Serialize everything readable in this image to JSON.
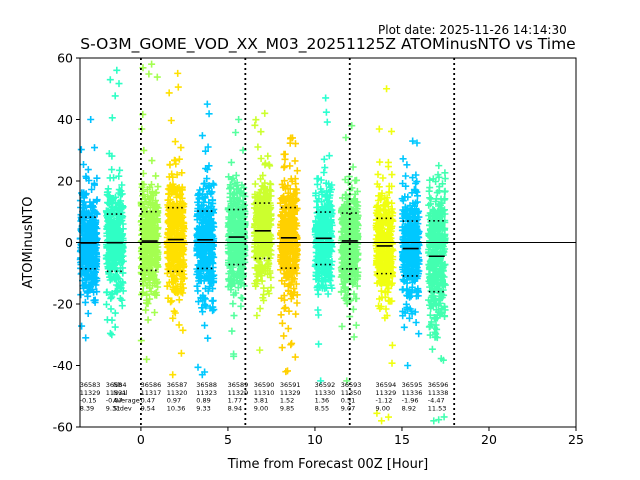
{
  "plot_date": "Plot date: 2025-11-26 14:14:30",
  "chart_data": {
    "type": "scatter",
    "title": "S-O3M_GOME_VOD_XX_M03_20251125Z ATOMinusNTO vs Time",
    "xlabel": "Time from Forecast 00Z [Hour]",
    "ylabel": "ATOMinusNTO",
    "xlim": [
      -3.5,
      25
    ],
    "ylim": [
      -60,
      60
    ],
    "xticks": [
      0,
      5,
      10,
      15,
      20,
      25
    ],
    "yticks": [
      -60,
      -40,
      -20,
      0,
      20,
      40,
      60
    ],
    "vlines": [
      0,
      6,
      12,
      18
    ],
    "hline": 0,
    "stats_labels": [
      "Nb",
      "Nval",
      "Average",
      "Stdev"
    ],
    "groups": [
      {
        "x": -3.0,
        "id": "36583",
        "nval": "11329",
        "mean": -0.15,
        "sd": 8.39,
        "color": "#00c0ff",
        "low": -31,
        "high": 40
      },
      {
        "x": -1.5,
        "id": "36584",
        "nval": "11331",
        "mean": -0.07,
        "sd": 9.31,
        "color": "#2fffc5",
        "low": -30,
        "high": 56
      },
      {
        "x": 0.5,
        "id": "36586",
        "nval": "11317",
        "mean": 0.47,
        "sd": 9.54,
        "color": "#a4ff50",
        "low": -38,
        "high": 58
      },
      {
        "x": 2.0,
        "id": "36587",
        "nval": "11320",
        "mean": 0.97,
        "sd": 10.36,
        "color": "#ffe000",
        "low": -43,
        "high": 55
      },
      {
        "x": 3.7,
        "id": "36588",
        "nval": "11323",
        "mean": 0.89,
        "sd": 9.33,
        "color": "#00c8ff",
        "low": -43,
        "high": 45
      },
      {
        "x": 5.5,
        "id": "36589",
        "nval": "11329",
        "mean": 1.77,
        "sd": 8.94,
        "color": "#55ff9f",
        "low": -37,
        "high": 40
      },
      {
        "x": 7.0,
        "id": "36590",
        "nval": "11310",
        "mean": 3.81,
        "sd": 9.0,
        "color": "#ccff2e",
        "low": -35,
        "high": 42
      },
      {
        "x": 8.5,
        "id": "36591",
        "nval": "11329",
        "mean": 1.52,
        "sd": 9.85,
        "color": "#ffd000",
        "low": -42,
        "high": 34
      },
      {
        "x": 10.5,
        "id": "36592",
        "nval": "11330",
        "mean": 1.36,
        "sd": 8.55,
        "color": "#2bffd0",
        "low": -45,
        "high": 47
      },
      {
        "x": 12.0,
        "id": "36593",
        "nval": "11350",
        "mean": 0.51,
        "sd": 9.07,
        "color": "#75ff80",
        "low": -45,
        "high": 38
      },
      {
        "x": 14.0,
        "id": "36594",
        "nval": "11329",
        "mean": -1.12,
        "sd": 9.0,
        "color": "#f0ff10",
        "low": -58,
        "high": 50
      },
      {
        "x": 15.5,
        "id": "36595",
        "nval": "11336",
        "mean": -1.96,
        "sd": 8.92,
        "color": "#00c8ff",
        "low": -40,
        "high": 33
      },
      {
        "x": 17.0,
        "id": "36596",
        "nval": "11338",
        "mean": -4.47,
        "sd": 11.53,
        "color": "#43ffb0",
        "low": -58,
        "high": 25
      }
    ]
  }
}
